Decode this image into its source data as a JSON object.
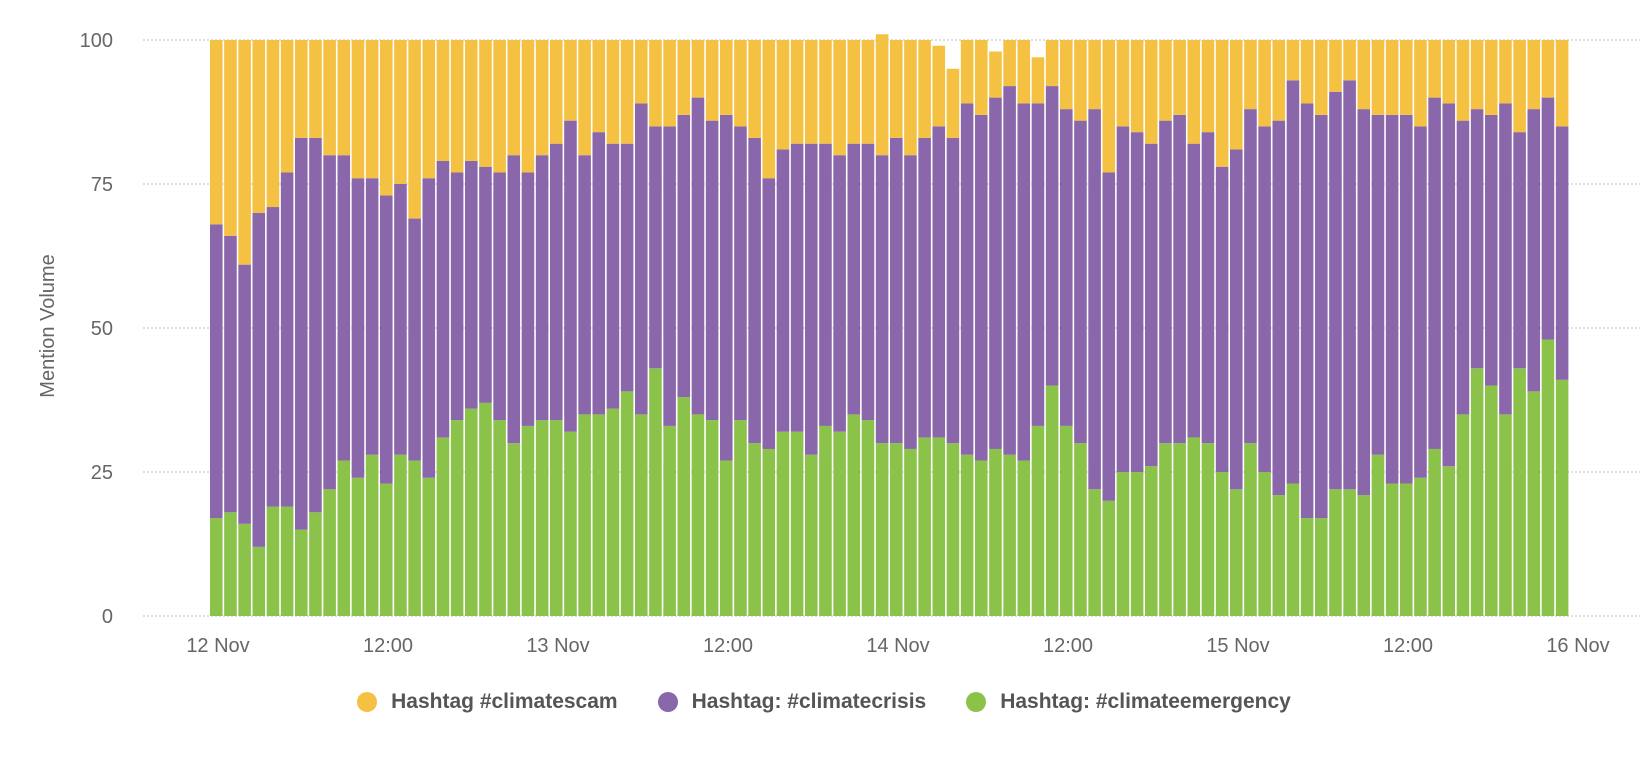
{
  "chart_data": {
    "type": "bar",
    "stacked": true,
    "ylabel": "Mention Volume",
    "xlabel": "",
    "ylim": [
      0,
      100
    ],
    "yticks": [
      "0",
      "25",
      "50",
      "75",
      "100"
    ],
    "xticks": [
      "12 Nov",
      "12:00",
      "13 Nov",
      "12:00",
      "14 Nov",
      "12:00",
      "15 Nov",
      "12:00",
      "16 Nov"
    ],
    "grid": true,
    "legend_position": "bottom",
    "series": [
      {
        "name": "Hashtag: #climateemergency",
        "color": "#8BC34A",
        "values": [
          17,
          18,
          16,
          12,
          19,
          19,
          15,
          18,
          22,
          27,
          24,
          28,
          23,
          28,
          27,
          24,
          31,
          34,
          36,
          37,
          34,
          30,
          33,
          34,
          34,
          32,
          35,
          35,
          36,
          39,
          35,
          43,
          33,
          38,
          35,
          34,
          27,
          34,
          30,
          29,
          32,
          32,
          28,
          33,
          32,
          35,
          34,
          30,
          30,
          29,
          31,
          31,
          30,
          28,
          27,
          29,
          28,
          27,
          33,
          40,
          33,
          30,
          22,
          20,
          25,
          25,
          26,
          30,
          30,
          31,
          30,
          25,
          22,
          30,
          25,
          21,
          23,
          17,
          17,
          22,
          22,
          21,
          28,
          23,
          23,
          24,
          29,
          26,
          35,
          43,
          40,
          35,
          43,
          39,
          48,
          41
        ]
      },
      {
        "name": "Hashtag: #climatecrisis",
        "color": "#8A66AB",
        "values": [
          51,
          48,
          45,
          58,
          52,
          58,
          68,
          65,
          58,
          53,
          52,
          48,
          50,
          47,
          42,
          52,
          48,
          43,
          43,
          41,
          43,
          50,
          44,
          46,
          48,
          54,
          45,
          49,
          46,
          43,
          54,
          42,
          52,
          49,
          55,
          52,
          60,
          51,
          53,
          47,
          49,
          50,
          54,
          49,
          48,
          47,
          48,
          50,
          53,
          51,
          52,
          54,
          53,
          61,
          60,
          61,
          64,
          62,
          56,
          52,
          55,
          56,
          66,
          57,
          60,
          59,
          56,
          56,
          57,
          51,
          54,
          53,
          59,
          58,
          60,
          65,
          70,
          72,
          70,
          69,
          71,
          67,
          59,
          64,
          64,
          61,
          61,
          63,
          51,
          45,
          47,
          54,
          41,
          49,
          42,
          44
        ]
      },
      {
        "name": "Hashtag #climatescam",
        "color": "#F5C142",
        "values": [
          32,
          34,
          39,
          30,
          29,
          23,
          17,
          17,
          20,
          20,
          24,
          24,
          27,
          25,
          31,
          24,
          21,
          23,
          21,
          22,
          23,
          20,
          23,
          20,
          18,
          14,
          20,
          16,
          18,
          18,
          11,
          15,
          15,
          13,
          10,
          14,
          13,
          15,
          17,
          24,
          19,
          18,
          18,
          18,
          20,
          18,
          18,
          21,
          17,
          20,
          17,
          14,
          12,
          11,
          13,
          8,
          8,
          11,
          8,
          8,
          12,
          14,
          12,
          23,
          15,
          16,
          18,
          14,
          13,
          18,
          16,
          22,
          19,
          12,
          15,
          14,
          7,
          11,
          13,
          9,
          7,
          12,
          13,
          13,
          13,
          15,
          10,
          11,
          14,
          12,
          13,
          11,
          16,
          12,
          10,
          15
        ]
      }
    ]
  },
  "legend": [
    {
      "label": "Hashtag #climatescam",
      "color": "#F5C142"
    },
    {
      "label": "Hashtag: #climatecrisis",
      "color": "#8A66AB"
    },
    {
      "label": "Hashtag: #climateemergency",
      "color": "#8BC34A"
    }
  ]
}
